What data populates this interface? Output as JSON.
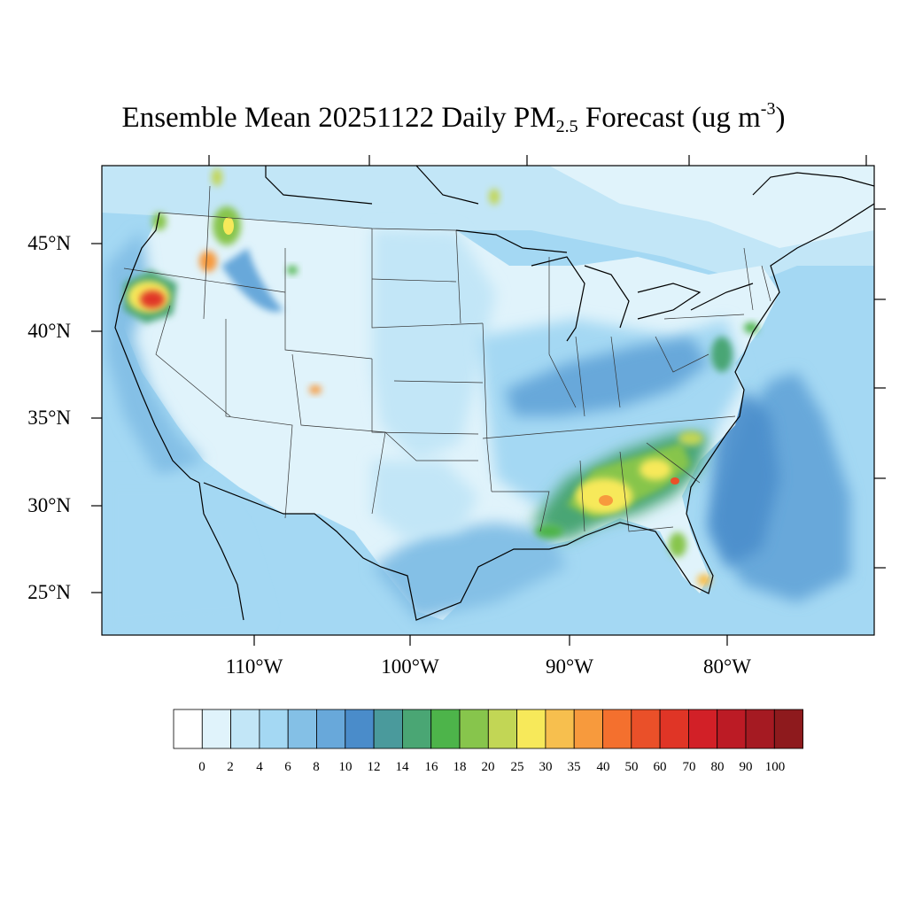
{
  "title": {
    "main": "Ensemble Mean 20251122 Daily PM",
    "sub": "2.5",
    "mid": " Forecast (ug m",
    "sup": "-3",
    "end": ")"
  },
  "lat_labels": [
    "45°N",
    "40°N",
    "35°N",
    "30°N",
    "25°N"
  ],
  "lon_labels": [
    "110°W",
    "100°W",
    "90°W",
    "80°W"
  ],
  "colorbar": {
    "ticks": [
      "0",
      "2",
      "4",
      "6",
      "8",
      "10",
      "12",
      "14",
      "16",
      "18",
      "20",
      "25",
      "30",
      "35",
      "40",
      "50",
      "60",
      "70",
      "80",
      "90",
      "100"
    ],
    "colors": [
      "#ffffff",
      "#e0f3fb",
      "#c2e6f7",
      "#a4d8f3",
      "#84c0e6",
      "#68a8da",
      "#4a8cca",
      "#4a9a9c",
      "#4aa674",
      "#4db44a",
      "#87c54c",
      "#c2d655",
      "#f7e95a",
      "#f7bf4e",
      "#f79a3d",
      "#f4702e",
      "#ea5029",
      "#e03526",
      "#d22027",
      "#bc1b25",
      "#a51a22",
      "#8e1a1d"
    ]
  },
  "legend": {
    "label_0": "0",
    "label_1": "2",
    "label_2": "4",
    "label_3": "6",
    "label_4": "8",
    "label_5": "10",
    "label_6": "12",
    "label_7": "14",
    "label_8": "16",
    "label_9": "18",
    "label_10": "20",
    "label_11": "25",
    "label_12": "30",
    "label_13": "35",
    "label_14": "40",
    "label_15": "50",
    "label_16": "60",
    "label_17": "70",
    "label_18": "80",
    "label_19": "90",
    "label_20": "100"
  },
  "map_colors": {
    "ocean": "#a4d8f3",
    "land_clean": "#e0f3fb",
    "land_light": "#c2e6f7",
    "moderate": "#84c0e6",
    "elevated": "#68a8da",
    "high": "#4a8cca",
    "border": "#1a1a1a"
  }
}
